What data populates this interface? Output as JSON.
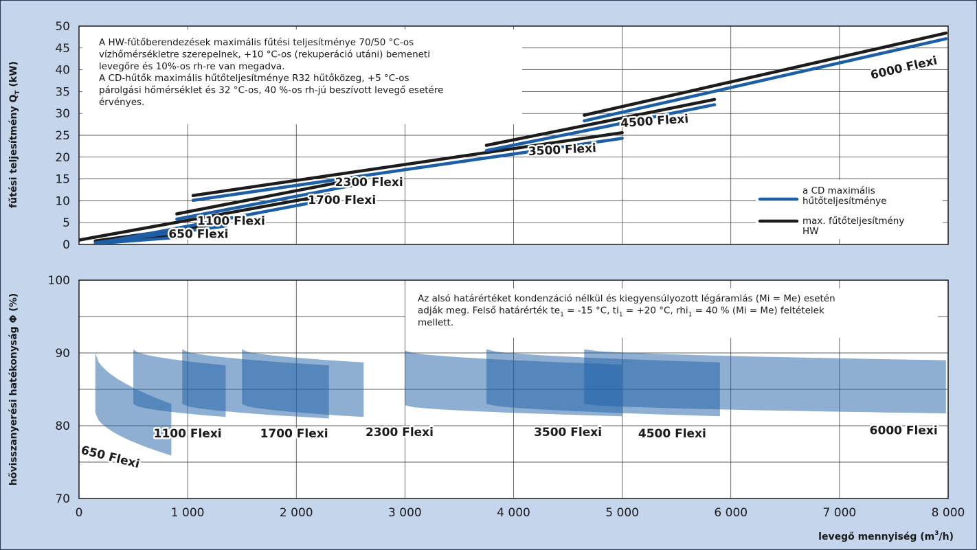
{
  "chart_data": [
    {
      "type": "line",
      "ylabel_main": "fűtési teljesítmény Q",
      "ylabel_sub": "T",
      "ylabel_unit": " (kW)",
      "xlim": [
        0,
        8000
      ],
      "ylim": [
        0,
        50
      ],
      "y_ticks": [
        0,
        5,
        10,
        15,
        20,
        25,
        30,
        35,
        40,
        45,
        50
      ],
      "note_lines": [
        "A HW-fűtőberendezések maximális fűtési teljesítménye 70/50 °C-os",
        "vízhőmérsékletre szerepelnek, +10 °C-os (rekuperáció utáni) bemeneti",
        "levegőre és 10%-os rh-re van megadva.",
        "A CD-hűtők maximális hűtőteljesítménye R32 hűtőközeg, +5 °C-os",
        "párolgási hőmérséklet és 32 °C-os, 40 %-os rh-jú beszívott levegő esetére",
        "érvényes."
      ],
      "legend": {
        "placement": "bottom-right",
        "blue_lines": [
          "a CD maximális",
          "hűtőteljesítménye"
        ],
        "black_lines": [
          "max. fűtőteljesítmény",
          "HW"
        ]
      },
      "colors": {
        "cd": "#1d5fa6",
        "hw": "#1c1c1c"
      },
      "series": [
        {
          "model": "650 Flexi",
          "hw": [
            [
              150,
              0.5
            ],
            [
              900,
              2.2
            ]
          ],
          "cd": [
            [
              150,
              0.2
            ],
            [
              900,
              1.6
            ]
          ]
        },
        {
          "model": "1100 Flexi",
          "hw": [
            [
              150,
              0.8
            ],
            [
              1350,
              4.9
            ]
          ],
          "cd": [
            [
              150,
              0.4
            ],
            [
              1350,
              4.2
            ]
          ]
        },
        {
          "model": "1700 Flexi",
          "hw": [
            [
              0,
              1.0
            ],
            [
              2300,
              11.4
            ]
          ],
          "cd": [
            [
              200,
              0.4
            ],
            [
              2300,
              10.3
            ]
          ]
        },
        {
          "model": "2300 Flexi",
          "hw": [
            [
              900,
              7.0
            ],
            [
              2600,
              15.2
            ]
          ],
          "cd": [
            [
              900,
              5.8
            ],
            [
              2600,
              13.9
            ]
          ]
        },
        {
          "model": "3500 Flexi",
          "hw": [
            [
              1050,
              11.2
            ],
            [
              5000,
              25.6
            ]
          ],
          "cd": [
            [
              1050,
              10.1
            ],
            [
              5000,
              24.3
            ]
          ]
        },
        {
          "model": "4500 Flexi",
          "hw": [
            [
              3750,
              22.7
            ],
            [
              5850,
              33.2
            ]
          ],
          "cd": [
            [
              3750,
              21.5
            ],
            [
              5850,
              32.0
            ]
          ]
        },
        {
          "model": "6000 Flexi",
          "hw": [
            [
              4650,
              29.6
            ],
            [
              7980,
              48.4
            ]
          ],
          "cd": [
            [
              4650,
              28.3
            ],
            [
              7980,
              47.1
            ]
          ]
        }
      ],
      "labels": [
        {
          "text": "650 Flexi",
          "x": 1100,
          "y": 1.5,
          "angle": 0
        },
        {
          "text": "1100 Flexi",
          "x": 1400,
          "y": 4.5,
          "angle": 0
        },
        {
          "text": "1700 Flexi",
          "x": 2420,
          "y": 9.3,
          "angle": 0
        },
        {
          "text": "2300 Flexi",
          "x": 2670,
          "y": 13.4,
          "angle": 0
        },
        {
          "text": "3500 Flexi",
          "x": 4450,
          "y": 20.8,
          "angle": -3
        },
        {
          "text": "4500 Flexi",
          "x": 5300,
          "y": 27.4,
          "angle": -4
        },
        {
          "text": "6000 Flexi",
          "x": 7600,
          "y": 39.6,
          "angle": -13
        }
      ]
    },
    {
      "type": "area",
      "ylabel_main": "hővisszanyerési hatékonyság ",
      "ylabel_phi": "Φ",
      "ylabel_unit": " (%)",
      "xlabel_main": "levegő mennyiség (m",
      "xlabel_sup": "3",
      "xlabel_end": "/h)",
      "xlim": [
        0,
        8000
      ],
      "ylim": [
        70,
        100
      ],
      "y_ticks": [
        70,
        80,
        90,
        100
      ],
      "x_ticks": [
        0,
        1000,
        2000,
        3000,
        4000,
        5000,
        6000,
        7000,
        8000
      ],
      "x_tick_labels": [
        "0",
        "1 000",
        "2 000",
        "3 000",
        "4 000",
        "5 000",
        "6 000",
        "7 000",
        "8 000"
      ],
      "note_lines": [
        {
          "parts": [
            {
              "t": "Az alsó határértéket kondenzáció nélkül és kiegyensúlyozott légáramlás (Mi = Me) esetén"
            }
          ]
        },
        {
          "parts": [
            {
              "t": "adják meg. Felső határérték te"
            },
            {
              "t": "1",
              "sub": true
            },
            {
              "t": " = -15 °C, ti"
            },
            {
              "t": "1",
              "sub": true
            },
            {
              "t": " = +20 °C, rhi"
            },
            {
              "t": "1",
              "sub": true
            },
            {
              "t": " = 40 % (Mi = Me) feltételek"
            }
          ]
        },
        {
          "parts": [
            {
              "t": "mellett."
            }
          ]
        }
      ],
      "band_color": "#1d5fa6",
      "bands": [
        {
          "model": "650 Flexi",
          "x": [
            150,
            850
          ],
          "upper": [
            90.0,
            83.0
          ],
          "lower": [
            81.8,
            75.9
          ]
        },
        {
          "model": "1100 Flexi",
          "x": [
            500,
            1350
          ],
          "upper": [
            90.5,
            88.3
          ],
          "lower": [
            83.0,
            81.2
          ]
        },
        {
          "model": "1700 Flexi",
          "x": [
            950,
            2300
          ],
          "upper": [
            90.5,
            88.3
          ],
          "lower": [
            83.0,
            81.0
          ]
        },
        {
          "model": "2300 Flexi",
          "x": [
            1500,
            2620
          ],
          "upper": [
            90.5,
            88.7
          ],
          "lower": [
            83.0,
            81.2
          ]
        },
        {
          "model": "3500 Flexi",
          "x": [
            3000,
            5000
          ],
          "upper": [
            90.3,
            88.4
          ],
          "lower": [
            82.8,
            81.3
          ]
        },
        {
          "model": "4500 Flexi",
          "x": [
            3750,
            5900
          ],
          "upper": [
            90.5,
            88.7
          ],
          "lower": [
            83.0,
            81.3
          ]
        },
        {
          "model": "6000 Flexi",
          "x": [
            4650,
            7980
          ],
          "upper": [
            90.5,
            89.0
          ],
          "lower": [
            83.0,
            81.7
          ]
        }
      ],
      "labels": [
        {
          "text": "650 Flexi",
          "x": 280,
          "y": 75.2,
          "angle": 14
        },
        {
          "text": "1100 Flexi",
          "x": 1000,
          "y": 78.4,
          "angle": 0
        },
        {
          "text": "1700 Flexi",
          "x": 1980,
          "y": 78.4,
          "angle": 0
        },
        {
          "text": "2300 Flexi",
          "x": 2950,
          "y": 78.6,
          "angle": 0
        },
        {
          "text": "3500 Flexi",
          "x": 4500,
          "y": 78.6,
          "angle": 0
        },
        {
          "text": "4500 Flexi",
          "x": 5460,
          "y": 78.4,
          "angle": 0
        },
        {
          "text": "6000 Flexi",
          "x": 7590,
          "y": 78.8,
          "angle": 0
        }
      ]
    }
  ]
}
